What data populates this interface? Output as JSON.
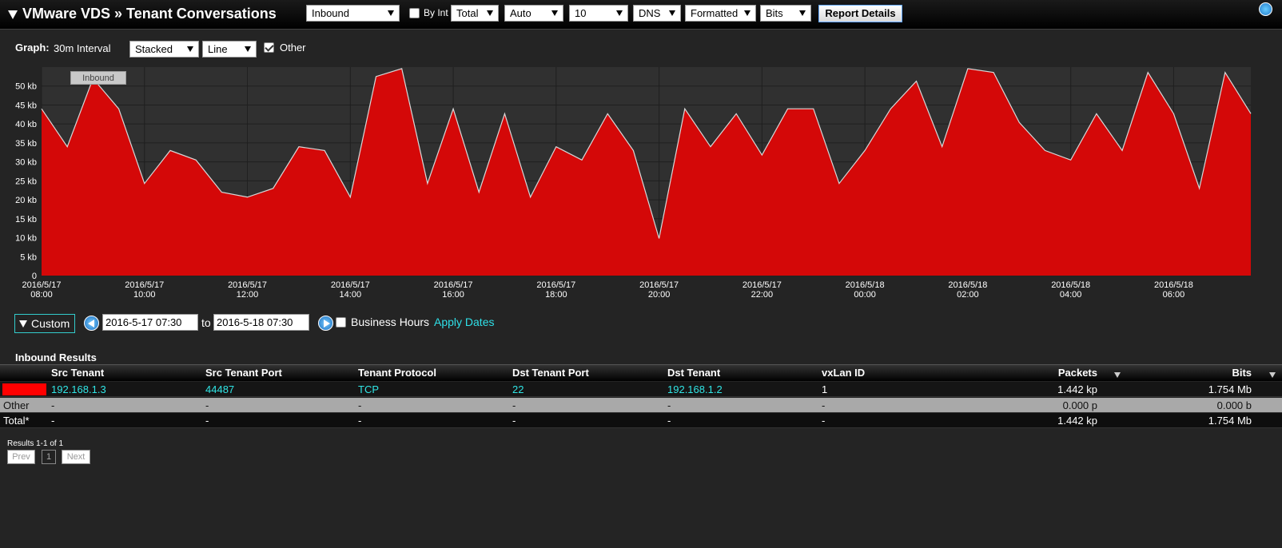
{
  "header": {
    "title": "VMware VDS » Tenant Conversations",
    "controls": [
      {
        "kind": "select",
        "label": "Inbound"
      },
      {
        "kind": "checkbox",
        "label": "By Int",
        "checked": false
      },
      {
        "kind": "select",
        "label": "Total"
      },
      {
        "kind": "select",
        "label": "Auto"
      },
      {
        "kind": "select",
        "label": "10"
      },
      {
        "kind": "select",
        "label": "DNS"
      },
      {
        "kind": "select",
        "label": "Formatted"
      },
      {
        "kind": "select",
        "label": "Bits"
      }
    ],
    "button": "Report Details"
  },
  "graph_controls": {
    "label": "Graph:",
    "interval": "30m Interval",
    "mode": "Stacked",
    "style": "Line",
    "other": {
      "label": "Other",
      "checked": true
    }
  },
  "chart_data": {
    "type": "area",
    "stacked": true,
    "grid": true,
    "categories": [
      "2016/5/17 08:00",
      null,
      null,
      null,
      "2016/5/17 10:00",
      null,
      null,
      null,
      "2016/5/17 12:00",
      null,
      null,
      null,
      "2016/5/17 14:00",
      null,
      null,
      null,
      "2016/5/17 16:00",
      null,
      null,
      null,
      "2016/5/17 18:00",
      null,
      null,
      null,
      "2016/5/17 20:00",
      null,
      null,
      null,
      "2016/5/17 22:00",
      null,
      null,
      null,
      "2016/5/18 00:00",
      null,
      null,
      null,
      "2016/5/18 02:00",
      null,
      null,
      null,
      "2016/5/18 04:00",
      null,
      null,
      null,
      "2016/5/18 06:00",
      null,
      null,
      null
    ],
    "series": [
      {
        "name": "Inbound",
        "color": "#d40808",
        "values": [
          44,
          34,
          52,
          44,
          24.3,
          33,
          30.5,
          22,
          20.7,
          23,
          34,
          33,
          20.7,
          52.5,
          54.6,
          24.3,
          44,
          22,
          42.7,
          20.7,
          34,
          30.5,
          42.7,
          33,
          9.8,
          44,
          34,
          42.7,
          31.8,
          44,
          44,
          24.3,
          33,
          44,
          51.3,
          34,
          54.6,
          53.6,
          40.4,
          33,
          30.5,
          42.7,
          33,
          53.6,
          42.7,
          23,
          53.6,
          42.7
        ]
      }
    ],
    "ylim": [
      0,
      55
    ],
    "yticks": [
      0,
      {
        "value": 5,
        "label": "5 kb"
      },
      {
        "value": 10,
        "label": "10 kb"
      },
      {
        "value": 15,
        "label": "15 kb"
      },
      {
        "value": 20,
        "label": "20 kb"
      },
      {
        "value": 25,
        "label": "25 kb"
      },
      {
        "value": 30,
        "label": "30 kb"
      },
      {
        "value": 35,
        "label": "35 kb"
      },
      {
        "value": 40,
        "label": "40 kb"
      },
      {
        "value": 45,
        "label": "45 kb"
      },
      {
        "value": 50,
        "label": "50 kb"
      }
    ]
  },
  "date_range": {
    "preset": "Custom",
    "from": "2016-5-17 07:30",
    "to_label": "to",
    "to": "2016-5-18 07:30",
    "business_hours": {
      "label": "Business Hours",
      "checked": false
    },
    "apply": "Apply Dates"
  },
  "table": {
    "title": "Inbound Results",
    "columns": [
      "Src Tenant",
      "Src Tenant Port",
      "Tenant Protocol",
      "Dst Tenant Port",
      "Dst Tenant",
      "vxLan ID",
      "Packets",
      "Bits"
    ],
    "rows": [
      {
        "swatch": "#ff0000",
        "cells": [
          "192.168.1.3",
          "44487",
          "TCP",
          "22",
          "192.168.1.2",
          "1",
          "1.442 kp",
          "1.754 Mb"
        ]
      },
      {
        "label": "Other",
        "cells": [
          "-",
          "-",
          "-",
          "-",
          "-",
          "-",
          "0.000 p",
          "0.000 b"
        ]
      },
      {
        "label": "Total*",
        "cells": [
          "-",
          "-",
          "-",
          "-",
          "-",
          "-",
          "1.442 kp",
          "1.754 Mb"
        ]
      }
    ]
  },
  "pagination": {
    "summary": "Results 1-1 of 1",
    "prev": "Prev",
    "page": "1",
    "next": "Next"
  }
}
